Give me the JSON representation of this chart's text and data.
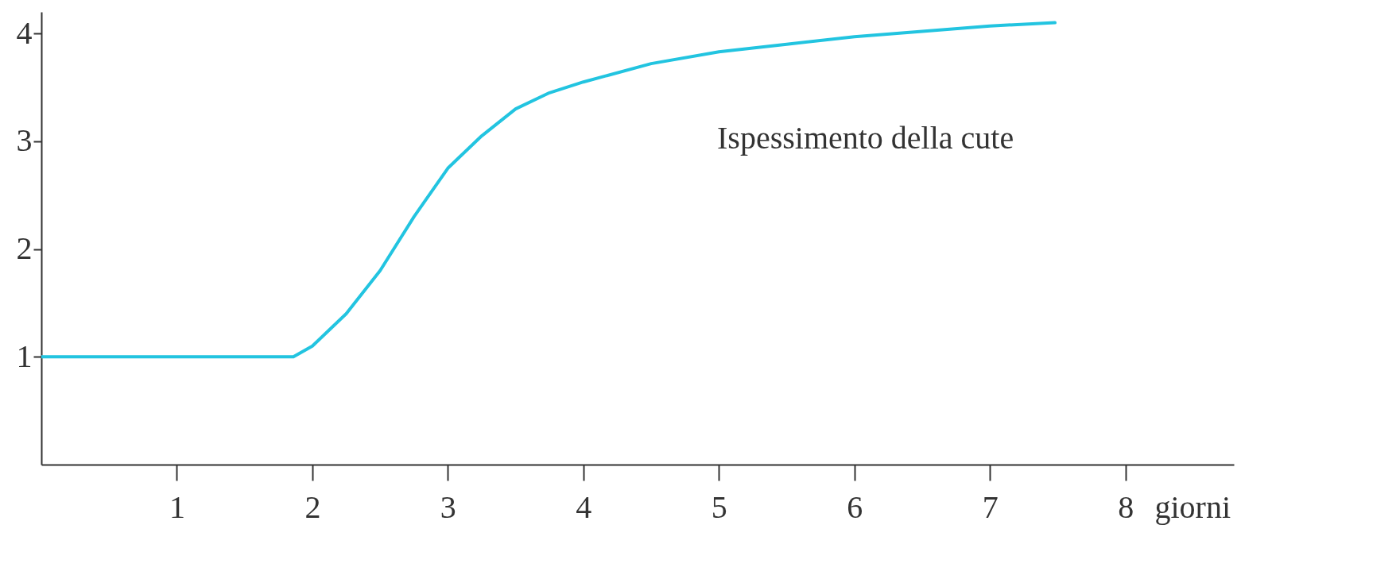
{
  "chart_data": {
    "type": "line",
    "xlabel": "giorni",
    "x": [
      0,
      0.5,
      1,
      1.5,
      1.86,
      2,
      2.25,
      2.5,
      2.75,
      3,
      3.25,
      3.5,
      3.75,
      4,
      4.5,
      5,
      5.5,
      6,
      6.5,
      7,
      7.48
    ],
    "series": [
      {
        "color": "#22c4e0",
        "values": [
          1,
          1,
          1,
          1,
          1,
          1.1,
          1.4,
          1.8,
          2.3,
          2.75,
          3.05,
          3.3,
          3.45,
          3.55,
          3.72,
          3.83,
          3.9,
          3.97,
          4.02,
          4.07,
          4.1
        ]
      }
    ],
    "xlim": [
      0,
      8.8
    ],
    "xticks": [
      1,
      2,
      3,
      4,
      5,
      6,
      7,
      8
    ],
    "ylim": [
      0,
      4.2
    ],
    "yticks": [
      1,
      2,
      3,
      4
    ],
    "grid": false,
    "marker": "none",
    "line_style": "solid",
    "annotations": [
      "Ispessimento della cute"
    ]
  }
}
